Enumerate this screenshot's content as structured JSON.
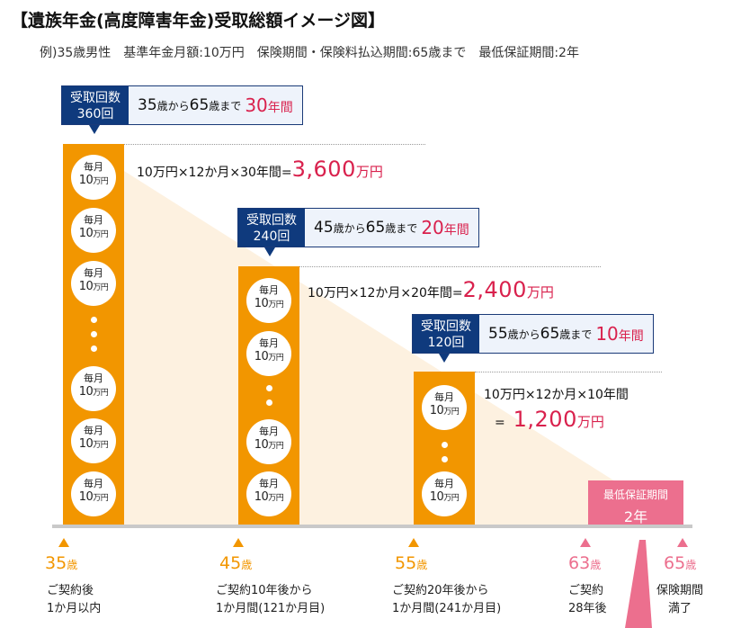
{
  "title": "【遺族年金(高度障害年金)受取総額イメージ図】",
  "subtitle": "例)35歳男性　基準年金月額:10万円　保険期間・保険料払込期間:65歳まで　最低保証期間:2年",
  "coin": {
    "line1": "毎月",
    "line2": "10",
    "unit": "万円"
  },
  "colors": {
    "bar": "#f29600",
    "navy": "#0f3a7d",
    "red": "#d9214d",
    "pink": "#ec6f8e",
    "triangle": "#fdf1e0"
  },
  "groups": [
    {
      "callout": {
        "count_label": "受取回数",
        "count": "360回",
        "age_from": "35",
        "age_to": "65",
        "from_word": "歳から",
        "to_word": "歳まで",
        "years": "30",
        "years_unit": "年間"
      },
      "calc": {
        "formula": "10万円×12か月×30年間",
        "equals": "=",
        "total": "3,600",
        "unit": "万円"
      }
    },
    {
      "callout": {
        "count_label": "受取回数",
        "count": "240回",
        "age_from": "45",
        "age_to": "65",
        "from_word": "歳から",
        "to_word": "歳まで",
        "years": "20",
        "years_unit": "年間"
      },
      "calc": {
        "formula": "10万円×12か月×20年間",
        "equals": "=",
        "total": "2,400",
        "unit": "万円"
      }
    },
    {
      "callout": {
        "count_label": "受取回数",
        "count": "120回",
        "age_from": "55",
        "age_to": "65",
        "from_word": "歳から",
        "to_word": "歳まで",
        "years": "10",
        "years_unit": "年間"
      },
      "calc": {
        "formula": "10万円×12か月×10年間",
        "equals": "=",
        "total": "1,200",
        "unit": "万円"
      }
    }
  ],
  "min_guarantee": {
    "label": "最低保証期間",
    "value": "2年"
  },
  "axis": [
    {
      "age": "35",
      "unit": "歳",
      "note1": "ご契約後",
      "note2": "1か月以内",
      "color": "#f29600"
    },
    {
      "age": "45",
      "unit": "歳",
      "note1": "ご契約10年後から",
      "note2": "1か月間(121か月目)",
      "color": "#f29600"
    },
    {
      "age": "55",
      "unit": "歳",
      "note1": "ご契約20年後から",
      "note2": "1か月間(241か月目)",
      "color": "#f29600"
    },
    {
      "age": "63",
      "unit": "歳",
      "note1": "ご契約",
      "note2": "28年後",
      "color": "#ec6f8e"
    },
    {
      "age": "65",
      "unit": "歳",
      "note1": "保険期間",
      "note2": "満了",
      "color": "#ec6f8e"
    }
  ]
}
